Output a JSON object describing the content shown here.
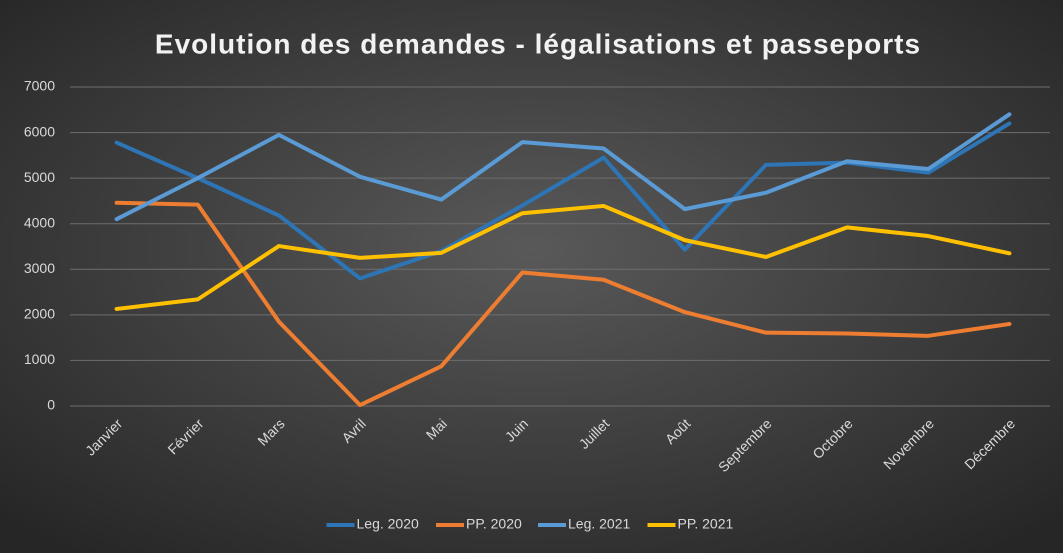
{
  "chart_data": {
    "type": "line",
    "title": "Evolution des demandes - légalisations et passeports",
    "categories": [
      "Janvier",
      "Février",
      "Mars",
      "Avril",
      "Mai",
      "Juin",
      "Juillet",
      "Août",
      "Septembre",
      "Octobre",
      "Novembre",
      "Décembre"
    ],
    "series": [
      {
        "name": "Leg. 2020",
        "color": "#2e75b6",
        "values": [
          5780,
          5000,
          4180,
          2800,
          3400,
          4400,
          5450,
          3430,
          5290,
          5340,
          5120,
          6200
        ]
      },
      {
        "name": "PP. 2020",
        "color": "#ed7d31",
        "values": [
          4460,
          4420,
          1850,
          20,
          870,
          2930,
          2770,
          2060,
          1610,
          1590,
          1540,
          1800
        ]
      },
      {
        "name": "Leg. 2021",
        "color": "#5b9bd5",
        "values": [
          4100,
          5000,
          5950,
          5030,
          4530,
          5790,
          5650,
          4320,
          4680,
          5370,
          5200,
          6400
        ]
      },
      {
        "name": "PP. 2021",
        "color": "#ffc000",
        "values": [
          2130,
          2340,
          3510,
          3250,
          3360,
          4230,
          4390,
          3640,
          3270,
          3920,
          3730,
          3350
        ]
      }
    ],
    "ylim": [
      0,
      7000
    ],
    "yticks": [
      0,
      1000,
      2000,
      3000,
      4000,
      5000,
      6000,
      7000
    ],
    "grid": true,
    "legend": "bottom"
  }
}
